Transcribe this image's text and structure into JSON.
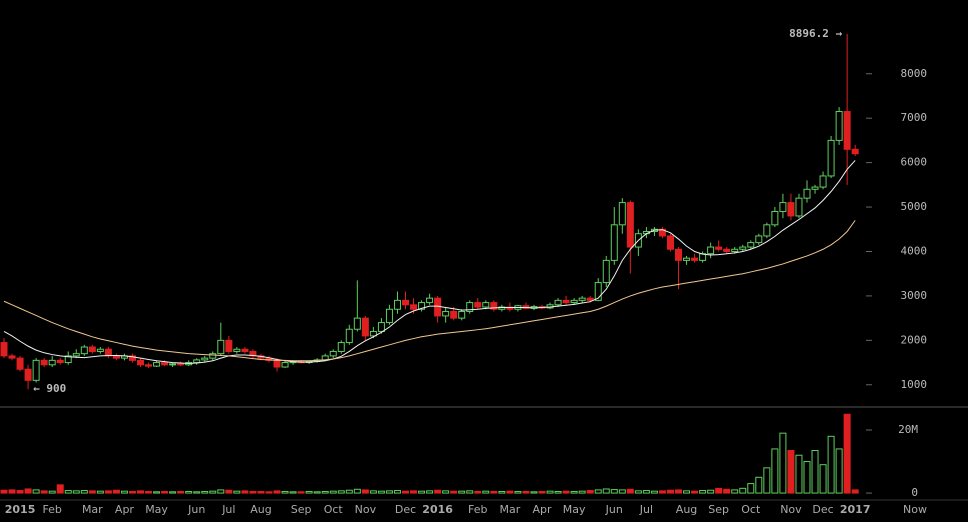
{
  "chart_data": {
    "type": "candlestick",
    "categories": [
      null,
      null,
      "2015",
      null,
      null,
      null,
      "Feb",
      null,
      null,
      null,
      null,
      "Mar",
      null,
      null,
      null,
      "Apr",
      null,
      null,
      null,
      "May",
      null,
      null,
      null,
      null,
      "Jun",
      null,
      null,
      null,
      "Jul",
      null,
      null,
      null,
      "Aug",
      null,
      null,
      null,
      null,
      "Sep",
      null,
      null,
      null,
      "Oct",
      null,
      null,
      null,
      "Nov",
      null,
      null,
      null,
      null,
      "Dec",
      null,
      null,
      null,
      "2016",
      null,
      null,
      null,
      null,
      "Feb",
      null,
      null,
      null,
      "Mar",
      null,
      null,
      null,
      "Apr",
      null,
      null,
      null,
      "May",
      null,
      null,
      null,
      null,
      "Jun",
      null,
      null,
      null,
      "Jul",
      null,
      null,
      null,
      null,
      "Aug",
      null,
      null,
      null,
      "Sep",
      null,
      null,
      null,
      "Oct",
      null,
      null,
      null,
      null,
      "Nov",
      null,
      null,
      null,
      "Dec",
      null,
      null,
      null,
      "2017"
    ],
    "open": [
      1950,
      1650,
      1600,
      1350,
      1100,
      1550,
      1450,
      1550,
      1500,
      1650,
      1700,
      1850,
      1750,
      1800,
      1650,
      1600,
      1650,
      1550,
      1450,
      1420,
      1500,
      1450,
      1470,
      1450,
      1500,
      1560,
      1600,
      1700,
      2000,
      1750,
      1800,
      1750,
      1650,
      1600,
      1550,
      1400,
      1500,
      1520,
      1500,
      1530,
      1560,
      1650,
      1750,
      1950,
      2250,
      2500,
      2100,
      2200,
      2400,
      2700,
      2900,
      2800,
      2700,
      2850,
      2950,
      2550,
      2650,
      2500,
      2650,
      2850,
      2750,
      2850,
      2700,
      2750,
      2700,
      2780,
      2720,
      2760,
      2730,
      2800,
      2900,
      2850,
      2900,
      2950,
      2900,
      3300,
      3800,
      4600,
      5100,
      4100,
      4400,
      4450,
      4500,
      4350,
      4050,
      3800,
      3850,
      3800,
      3950,
      4100,
      4050,
      4000,
      4050,
      4100,
      4200,
      4350,
      4600,
      4900,
      5100,
      4800,
      5200,
      5400,
      5450,
      5700,
      6500,
      7150,
      6300
    ],
    "high": [
      2050,
      1700,
      1650,
      1450,
      1600,
      1600,
      1650,
      1600,
      1750,
      1800,
      1900,
      1900,
      1850,
      1850,
      1700,
      1700,
      1700,
      1600,
      1500,
      1550,
      1550,
      1500,
      1520,
      1550,
      1600,
      1650,
      1750,
      2400,
      2100,
      1850,
      1850,
      1800,
      1700,
      1650,
      1600,
      1550,
      1550,
      1560,
      1550,
      1600,
      1700,
      1800,
      2000,
      2350,
      3350,
      2550,
      2300,
      2500,
      2800,
      3100,
      3100,
      2950,
      2900,
      3050,
      3000,
      2750,
      2750,
      2700,
      2900,
      2950,
      2900,
      2900,
      2800,
      2850,
      2800,
      2850,
      2800,
      2800,
      2850,
      2950,
      3000,
      2950,
      3000,
      3000,
      3400,
      3900,
      5000,
      5200,
      5150,
      4500,
      4550,
      4550,
      4550,
      4400,
      4100,
      3900,
      3950,
      4000,
      4200,
      4250,
      4100,
      4100,
      4150,
      4250,
      4400,
      4650,
      5000,
      5300,
      5300,
      5300,
      5600,
      5500,
      5800,
      6600,
      7250,
      8896.2,
      6400
    ],
    "low": [
      1600,
      1550,
      1300,
      900,
      1050,
      1400,
      1400,
      1450,
      1450,
      1600,
      1650,
      1700,
      1700,
      1600,
      1550,
      1550,
      1500,
      1400,
      1380,
      1400,
      1420,
      1400,
      1420,
      1420,
      1450,
      1500,
      1550,
      1650,
      1700,
      1700,
      1700,
      1600,
      1550,
      1500,
      1300,
      1380,
      1450,
      1480,
      1470,
      1500,
      1530,
      1600,
      1700,
      1900,
      2200,
      2000,
      2050,
      2150,
      2350,
      2600,
      2700,
      2600,
      2650,
      2800,
      2400,
      2400,
      2450,
      2450,
      2600,
      2700,
      2700,
      2650,
      2650,
      2650,
      2650,
      2700,
      2680,
      2700,
      2700,
      2750,
      2800,
      2800,
      2850,
      2850,
      2880,
      3200,
      3700,
      4400,
      3500,
      3900,
      4300,
      4350,
      4300,
      4000,
      3150,
      3700,
      3750,
      3750,
      3850,
      4000,
      3950,
      3950,
      4000,
      4050,
      4150,
      4300,
      4550,
      4750,
      4700,
      4750,
      5100,
      5300,
      5400,
      5650,
      6400,
      5500,
      6150
    ],
    "close": [
      1650,
      1600,
      1350,
      1100,
      1550,
      1450,
      1550,
      1500,
      1650,
      1700,
      1850,
      1750,
      1800,
      1650,
      1600,
      1650,
      1550,
      1450,
      1420,
      1500,
      1450,
      1470,
      1450,
      1500,
      1560,
      1600,
      1700,
      2000,
      1750,
      1800,
      1750,
      1650,
      1600,
      1550,
      1400,
      1500,
      1520,
      1500,
      1530,
      1560,
      1650,
      1750,
      1950,
      2250,
      2500,
      2100,
      2200,
      2400,
      2700,
      2900,
      2800,
      2700,
      2850,
      2950,
      2550,
      2650,
      2500,
      2650,
      2850,
      2750,
      2850,
      2700,
      2750,
      2700,
      2780,
      2720,
      2760,
      2730,
      2800,
      2900,
      2850,
      2900,
      2950,
      2900,
      3300,
      3800,
      4600,
      5100,
      4100,
      4400,
      4450,
      4500,
      4350,
      4050,
      3800,
      3850,
      3800,
      3950,
      4100,
      4050,
      4000,
      4050,
      4100,
      4200,
      4350,
      4600,
      4900,
      5100,
      4800,
      5200,
      5400,
      5450,
      5700,
      6500,
      7150,
      6300,
      6200
    ],
    "up_color": "#5fcf5f",
    "down_color": "#e02020",
    "ma_lines": [
      {
        "color": "#f2f2f2",
        "values": [
          2200,
          2100,
          1980,
          1870,
          1780,
          1720,
          1680,
          1650,
          1630,
          1620,
          1610,
          1630,
          1650,
          1660,
          1660,
          1650,
          1630,
          1600,
          1570,
          1540,
          1520,
          1500,
          1490,
          1480,
          1490,
          1510,
          1540,
          1600,
          1650,
          1670,
          1670,
          1660,
          1640,
          1610,
          1570,
          1540,
          1520,
          1510,
          1510,
          1520,
          1540,
          1580,
          1640,
          1750,
          1880,
          1990,
          2080,
          2180,
          2300,
          2450,
          2580,
          2660,
          2720,
          2770,
          2770,
          2740,
          2710,
          2680,
          2690,
          2700,
          2720,
          2730,
          2740,
          2740,
          2740,
          2740,
          2730,
          2740,
          2750,
          2770,
          2790,
          2810,
          2840,
          2870,
          2950,
          3150,
          3450,
          3800,
          4050,
          4250,
          4400,
          4480,
          4490,
          4420,
          4280,
          4120,
          4000,
          3940,
          3920,
          3930,
          3950,
          3970,
          4000,
          4050,
          4120,
          4220,
          4340,
          4480,
          4600,
          4720,
          4850,
          4980,
          5150,
          5350,
          5580,
          5850,
          6050
        ]
      },
      {
        "color": "#f0c890",
        "values": [
          2880,
          2800,
          2720,
          2640,
          2560,
          2480,
          2400,
          2330,
          2260,
          2200,
          2140,
          2080,
          2030,
          1990,
          1950,
          1910,
          1870,
          1840,
          1810,
          1780,
          1760,
          1740,
          1720,
          1700,
          1690,
          1680,
          1670,
          1660,
          1650,
          1630,
          1610,
          1590,
          1570,
          1560,
          1550,
          1550,
          1540,
          1540,
          1540,
          1550,
          1560,
          1580,
          1610,
          1650,
          1700,
          1750,
          1800,
          1850,
          1900,
          1950,
          2000,
          2040,
          2080,
          2110,
          2140,
          2160,
          2180,
          2200,
          2220,
          2240,
          2260,
          2290,
          2320,
          2350,
          2380,
          2410,
          2440,
          2470,
          2500,
          2530,
          2560,
          2590,
          2620,
          2650,
          2700,
          2770,
          2850,
          2930,
          3000,
          3060,
          3110,
          3160,
          3200,
          3230,
          3260,
          3290,
          3320,
          3350,
          3380,
          3410,
          3440,
          3470,
          3500,
          3540,
          3580,
          3620,
          3670,
          3720,
          3780,
          3840,
          3900,
          3970,
          4050,
          4150,
          4280,
          4450,
          4700
        ]
      }
    ],
    "ylim": [
      500,
      9660
    ],
    "yticks": [
      1000,
      2000,
      3000,
      4000,
      5000,
      6000,
      7000,
      8000
    ],
    "high_label": "8896.2 →",
    "low_label": "← 900",
    "volume": {
      "values": [
        900000,
        1000000,
        800000,
        1300000,
        1000000,
        700000,
        600000,
        2600000,
        800000,
        700000,
        800000,
        700000,
        600000,
        700000,
        900000,
        600000,
        500000,
        700000,
        500000,
        400000,
        500000,
        400000,
        500000,
        500000,
        400000,
        500000,
        600000,
        1000000,
        900000,
        600000,
        700000,
        500000,
        500000,
        400000,
        700000,
        500000,
        400000,
        400000,
        500000,
        400000,
        500000,
        600000,
        700000,
        900000,
        1200000,
        1000000,
        700000,
        600000,
        700000,
        800000,
        600000,
        700000,
        600000,
        700000,
        900000,
        700000,
        600000,
        600000,
        700000,
        500000,
        600000,
        500000,
        500000,
        600000,
        500000,
        500000,
        400000,
        500000,
        600000,
        500000,
        600000,
        500000,
        600000,
        800000,
        1000000,
        1300000,
        1100000,
        1000000,
        1200000,
        700000,
        800000,
        600000,
        700000,
        900000,
        1000000,
        700000,
        600000,
        800000,
        900000,
        1500000,
        1200000,
        1000000,
        1500000,
        3000000,
        5000000,
        8000000,
        14000000,
        19000000,
        13500000,
        12000000,
        10000000,
        13500000,
        9000000,
        18000000,
        14000000,
        25000000,
        1000000
      ],
      "ylim": [
        -2200000,
        27300000
      ],
      "yticks": [
        0,
        {
          "value": 20000000,
          "label": "20M"
        }
      ]
    },
    "x_end_label": "Now"
  }
}
